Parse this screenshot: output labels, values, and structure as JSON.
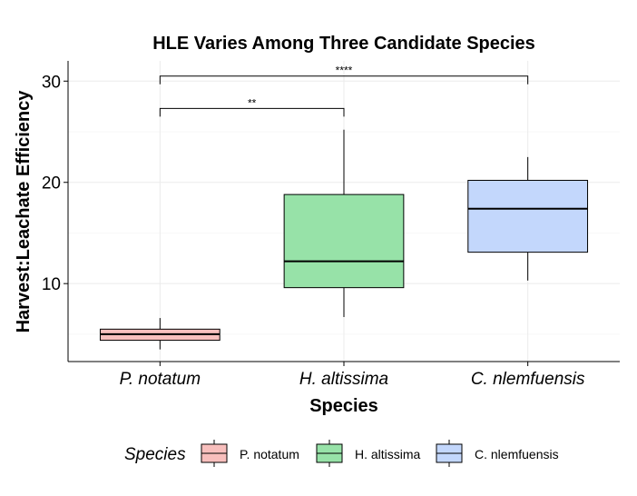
{
  "chart_data": {
    "type": "boxplot",
    "title": "HLE Varies Among Three Candidate Species",
    "xlabel": "Species",
    "ylabel": "Harvest:Leachate Efficiency",
    "ylim": [
      2.3,
      32.0
    ],
    "yticks": [
      10,
      20,
      30
    ],
    "grid": true,
    "legend": {
      "title": "Species",
      "position": "bottom"
    },
    "categories": [
      "P. notatum",
      "H. altissima",
      "C. nlemfuensis"
    ],
    "series": [
      {
        "name": "P. notatum",
        "color": "#F8BFBD",
        "whisker_low": 3.5,
        "q1": 4.4,
        "median": 5.0,
        "q3": 5.5,
        "whisker_high": 6.6
      },
      {
        "name": "H. altissima",
        "color": "#97E2A8",
        "whisker_low": 6.7,
        "q1": 9.6,
        "median": 12.2,
        "q3": 18.8,
        "whisker_high": 25.2
      },
      {
        "name": "C. nlemfuensis",
        "color": "#C3D7FC",
        "whisker_low": 10.3,
        "q1": 13.1,
        "median": 17.4,
        "q3": 20.2,
        "whisker_high": 22.5
      }
    ],
    "annotations": [
      {
        "from": 0,
        "to": 1,
        "label": "**",
        "y": 27.3
      },
      {
        "from": 0,
        "to": 2,
        "label": "****",
        "y": 30.5
      }
    ]
  }
}
